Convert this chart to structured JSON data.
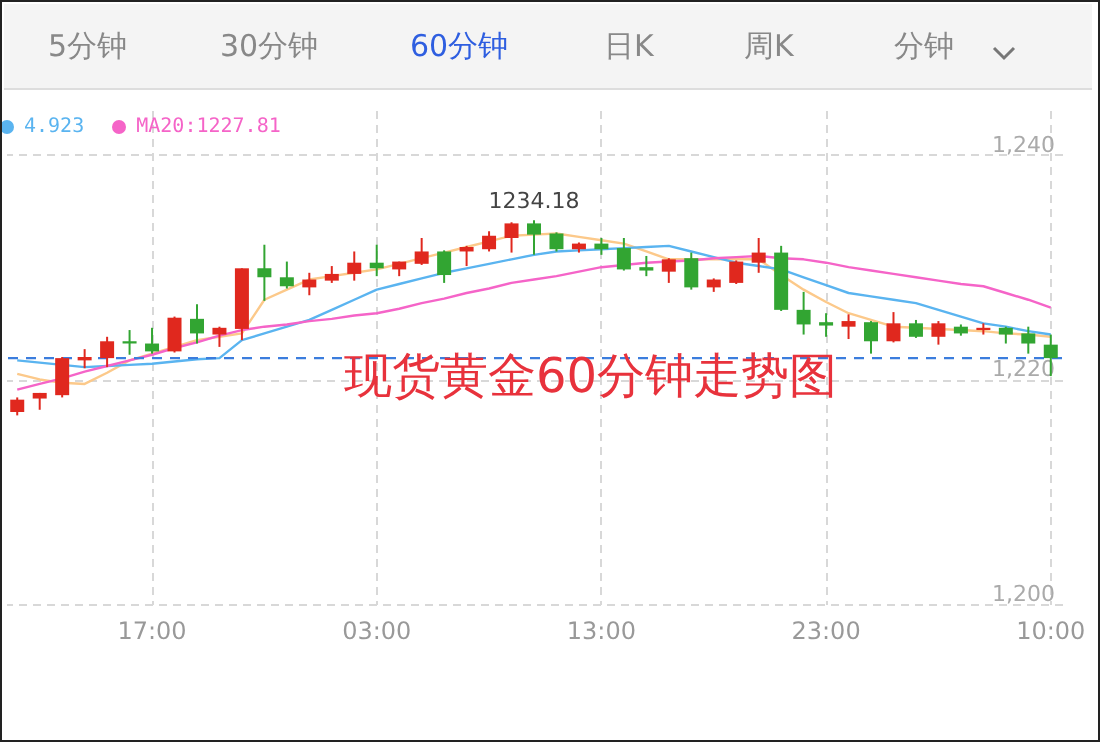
{
  "chart_data": {
    "type": "candlestick",
    "title": "现货黄金60分钟走势图",
    "categories": [
      null,
      null,
      null,
      null,
      null,
      null,
      "17:00",
      null,
      null,
      null,
      null,
      null,
      null,
      null,
      null,
      null,
      "03:00",
      null,
      null,
      null,
      null,
      null,
      null,
      null,
      null,
      null,
      "13:00",
      null,
      null,
      null,
      null,
      null,
      null,
      null,
      null,
      null,
      "23:00",
      null,
      null,
      null,
      null,
      null,
      null,
      null,
      null,
      null,
      "10:00"
    ],
    "ohlc": [
      [
        1217.1,
        1218.4,
        1216.8,
        1218.2
      ],
      [
        1218.3,
        1218.8,
        1217.3,
        1218.8
      ],
      [
        1218.6,
        1222.0,
        1218.4,
        1221.9
      ],
      [
        1221.7,
        1222.7,
        1221.0,
        1222.0
      ],
      [
        1221.9,
        1223.8,
        1221.1,
        1223.4
      ],
      [
        1223.4,
        1224.4,
        1222.2,
        1223.2
      ],
      [
        1223.2,
        1224.6,
        1222.3,
        1222.5
      ],
      [
        1222.5,
        1225.6,
        1222.4,
        1225.5
      ],
      [
        1225.4,
        1226.7,
        1223.2,
        1224.1
      ],
      [
        1224.0,
        1224.7,
        1222.9,
        1224.6
      ],
      [
        1224.5,
        1229.9,
        1223.5,
        1229.9
      ],
      [
        1229.9,
        1232.0,
        1227.0,
        1229.1
      ],
      [
        1229.1,
        1230.5,
        1228.1,
        1228.3
      ],
      [
        1228.2,
        1229.5,
        1227.5,
        1228.9
      ],
      [
        1228.8,
        1230.1,
        1228.6,
        1229.4
      ],
      [
        1229.4,
        1231.4,
        1228.8,
        1230.4
      ],
      [
        1230.4,
        1232.0,
        1229.2,
        1229.9
      ],
      [
        1229.8,
        1230.5,
        1229.2,
        1230.5
      ],
      [
        1230.3,
        1232.6,
        1230.2,
        1231.4
      ],
      [
        1231.4,
        1231.5,
        1228.6,
        1229.3
      ],
      [
        1231.4,
        1231.9,
        1230.1,
        1231.8
      ],
      [
        1231.6,
        1233.2,
        1231.4,
        1232.8
      ],
      [
        1232.6,
        1234.0,
        1231.3,
        1233.9
      ],
      [
        1233.9,
        1234.18,
        1231.1,
        1232.9
      ],
      [
        1233.0,
        1233.1,
        1231.4,
        1231.6
      ],
      [
        1231.6,
        1232.2,
        1231.3,
        1232.1
      ],
      [
        1232.1,
        1232.6,
        1231.1,
        1231.6
      ],
      [
        1231.7,
        1232.6,
        1229.7,
        1229.8
      ],
      [
        1230.0,
        1231.0,
        1229.2,
        1229.7
      ],
      [
        1229.6,
        1230.8,
        1228.6,
        1230.7
      ],
      [
        1230.8,
        1231.3,
        1228.0,
        1228.2
      ],
      [
        1228.2,
        1229.0,
        1227.8,
        1228.9
      ],
      [
        1228.6,
        1230.6,
        1228.5,
        1230.5
      ],
      [
        1230.4,
        1232.6,
        1229.5,
        1231.3
      ],
      [
        1231.3,
        1231.9,
        1226.1,
        1226.2
      ],
      [
        1226.2,
        1227.8,
        1224.0,
        1224.9
      ],
      [
        1225.1,
        1225.9,
        1223.8,
        1224.8
      ],
      [
        1224.7,
        1225.8,
        1223.6,
        1225.2
      ],
      [
        1225.1,
        1225.2,
        1222.3,
        1223.4
      ],
      [
        1223.4,
        1226.0,
        1223.3,
        1225.0
      ],
      [
        1225.0,
        1225.3,
        1223.7,
        1223.8
      ],
      [
        1223.8,
        1225.2,
        1223.1,
        1225.0
      ],
      [
        1224.7,
        1224.9,
        1223.9,
        1224.1
      ],
      [
        1224.4,
        1225.0,
        1224.0,
        1224.6
      ],
      [
        1224.6,
        1224.7,
        1223.2,
        1224.0
      ],
      [
        1224.1,
        1224.7,
        1222.3,
        1223.2
      ],
      [
        1223.1,
        1224.0,
        1220.3,
        1221.9
      ]
    ],
    "colors": [
      "#e0281e",
      "#e0281e",
      "#e0281e",
      "#e0281e",
      "#e0281e",
      "#32a532",
      "#32a532",
      "#e0281e",
      "#32a532",
      "#e0281e",
      "#e0281e",
      "#32a532",
      "#32a532",
      "#e0281e",
      "#e0281e",
      "#e0281e",
      "#32a532",
      "#e0281e",
      "#e0281e",
      "#32a532",
      "#e0281e",
      "#e0281e",
      "#e0281e",
      "#32a532",
      "#32a532",
      "#e0281e",
      "#32a532",
      "#32a532",
      "#32a532",
      "#e0281e",
      "#32a532",
      "#e0281e",
      "#e0281e",
      "#e0281e",
      "#32a532",
      "#32a532",
      "#32a532",
      "#e0281e",
      "#32a532",
      "#e0281e",
      "#32a532",
      "#e0281e",
      "#32a532",
      "#e0281e",
      "#32a532",
      "#32a532",
      "#32a532"
    ],
    "series": [
      {
        "type": "line",
        "color": "#fcc98a",
        "values": [
          1220.5,
          1220.0,
          1219.7,
          1219.6,
          1220.6,
          1221.7,
          1222.3,
          1222.9,
          1223.5,
          1223.8,
          1224.1,
          1227.1,
          1228.0,
          1228.9,
          1229.2,
          1229.5,
          1229.8,
          1230.3,
          1230.8,
          1231.3,
          1231.8,
          1232.3,
          1232.8,
          1232.9,
          1233.0,
          1232.7,
          1232.4,
          1232.1,
          1231.4,
          1230.7,
          1230.7,
          1230.7,
          1230.7,
          1230.7,
          1229.3,
          1228.0,
          1226.9,
          1225.9,
          1225.3,
          1224.7,
          1224.6,
          1224.5,
          1224.4,
          1224.3,
          1224.1,
          1224.0,
          1223.8
        ]
      },
      {
        "type": "line",
        "name": "4.923",
        "color": "#5ab4f0",
        "values": [
          1221.7,
          1221.5,
          1221.3,
          1221.1,
          1221.2,
          1221.3,
          1221.4,
          1221.6,
          1221.8,
          1221.9,
          1223.5,
          1224.1,
          1224.7,
          1225.3,
          1226.2,
          1227.1,
          1228.0,
          1228.5,
          1229.0,
          1229.5,
          1229.9,
          1230.3,
          1230.7,
          1231.1,
          1231.4,
          1231.5,
          1231.6,
          1231.7,
          1231.8,
          1231.9,
          1231.4,
          1230.9,
          1230.4,
          1230.1,
          1229.8,
          1229.1,
          1228.4,
          1227.7,
          1227.4,
          1227.1,
          1226.8,
          1226.2,
          1225.6,
          1225.0,
          1224.7,
          1224.3,
          1224.0
        ]
      },
      {
        "type": "line",
        "name": "MA20:1227.81",
        "color": "#f564c8",
        "values": [
          1219.1,
          1219.6,
          1220.1,
          1220.7,
          1221.2,
          1221.7,
          1222.2,
          1222.8,
          1223.3,
          1223.9,
          1224.4,
          1224.7,
          1224.9,
          1225.2,
          1225.4,
          1225.7,
          1225.9,
          1226.3,
          1226.8,
          1227.2,
          1227.7,
          1228.1,
          1228.6,
          1228.9,
          1229.2,
          1229.6,
          1230.0,
          1230.2,
          1230.4,
          1230.5,
          1230.6,
          1230.8,
          1230.9,
          1231.0,
          1230.8,
          1230.7,
          1230.4,
          1230.0,
          1229.7,
          1229.4,
          1229.1,
          1228.8,
          1228.5,
          1228.3,
          1227.7,
          1227.1,
          1226.4
        ]
      }
    ],
    "ylim": [
      1200,
      1244
    ],
    "yticks": [
      {
        "value": 1200,
        "label": "1,200"
      },
      {
        "value": 1220,
        "label": "1,220"
      },
      {
        "value": 1240,
        "label": "1,240"
      }
    ],
    "grid": true,
    "legend": "top left",
    "ref_lines": [
      {
        "axis": "y",
        "value": 1221.9,
        "color": "#3b7ddd",
        "line_style": "dashed"
      }
    ],
    "annotations": [
      "5分钟",
      "30分钟",
      "60分钟",
      "日K",
      "周K",
      "分钟",
      {
        "text": "1234.18",
        "y": 1234.18
      }
    ]
  }
}
